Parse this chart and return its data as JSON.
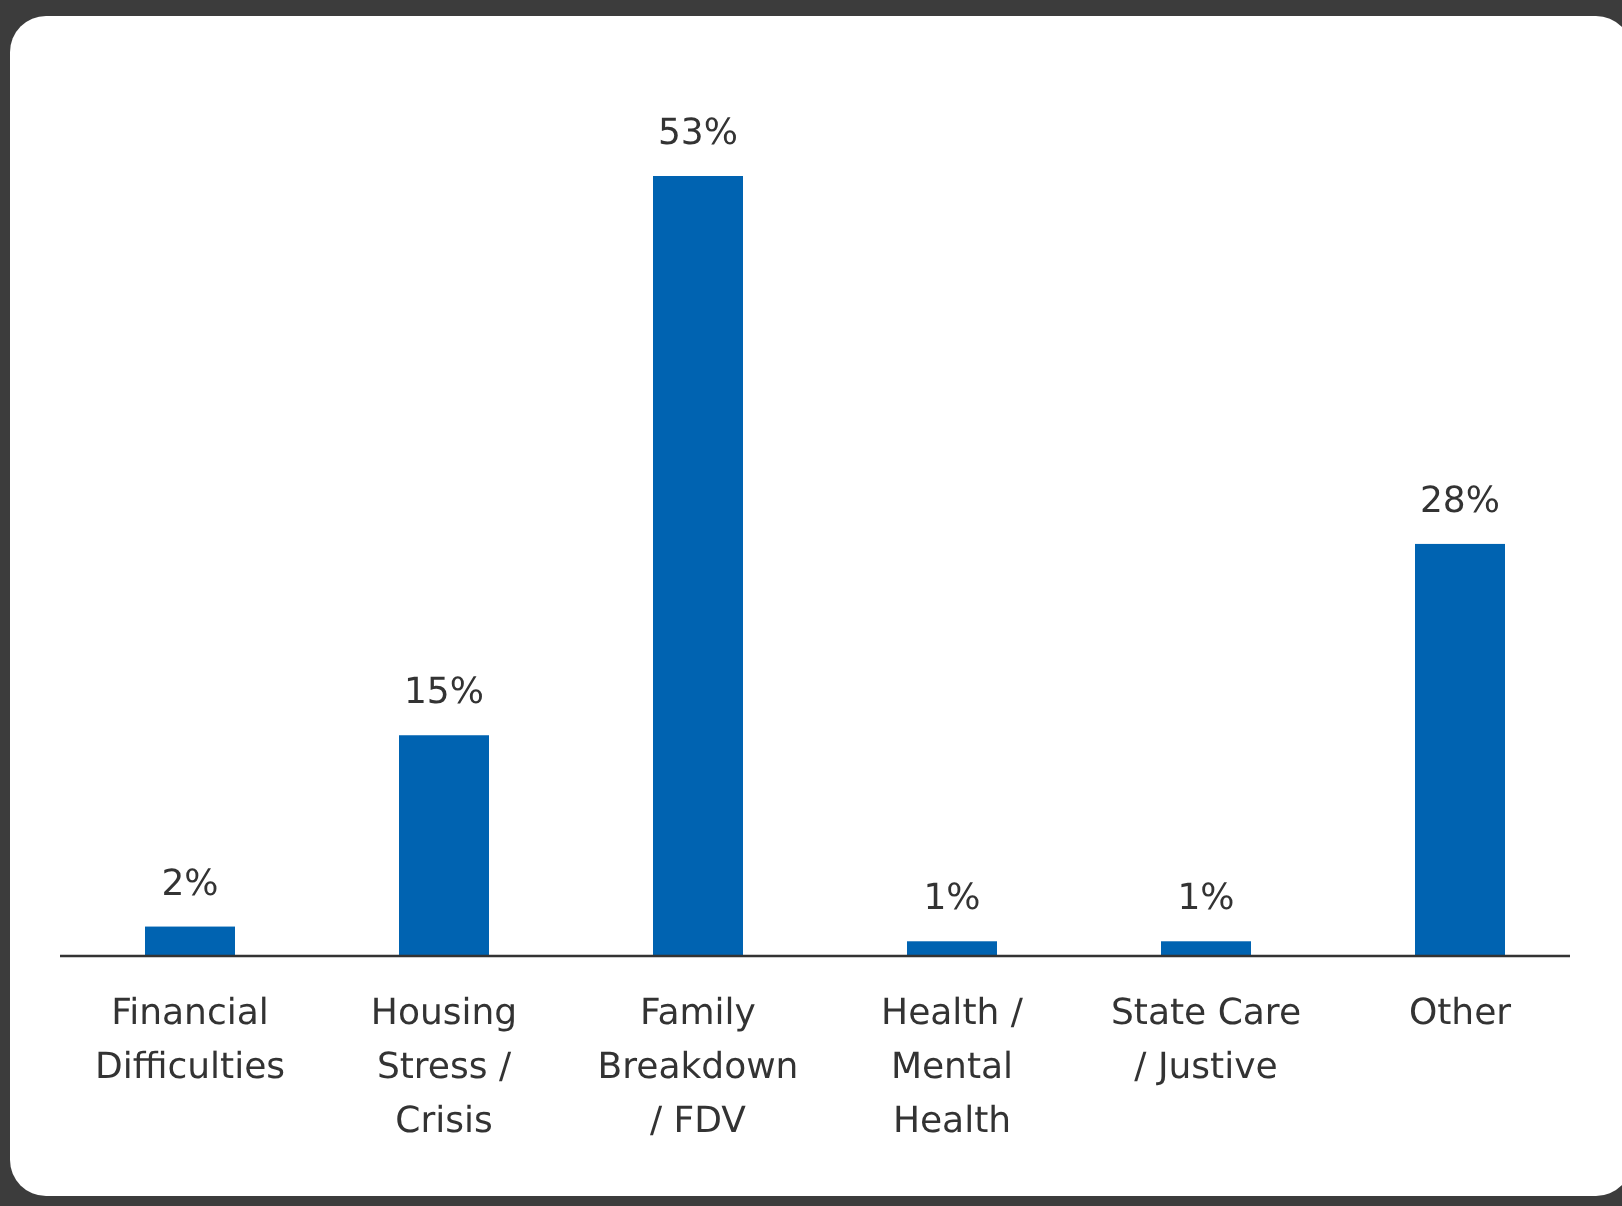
{
  "chart_data": {
    "type": "bar",
    "categories": [
      "Financial Difficulties",
      "Housing Stress / Crisis",
      "Family Breakdown / FDV",
      "Health / Mental Health",
      "State Care / Justive",
      "Other"
    ],
    "values": [
      2,
      15,
      53,
      1,
      1,
      28
    ],
    "value_labels": [
      "2%",
      "15%",
      "53%",
      "1%",
      "1%",
      "28%"
    ],
    "color": "#0063b1"
  }
}
